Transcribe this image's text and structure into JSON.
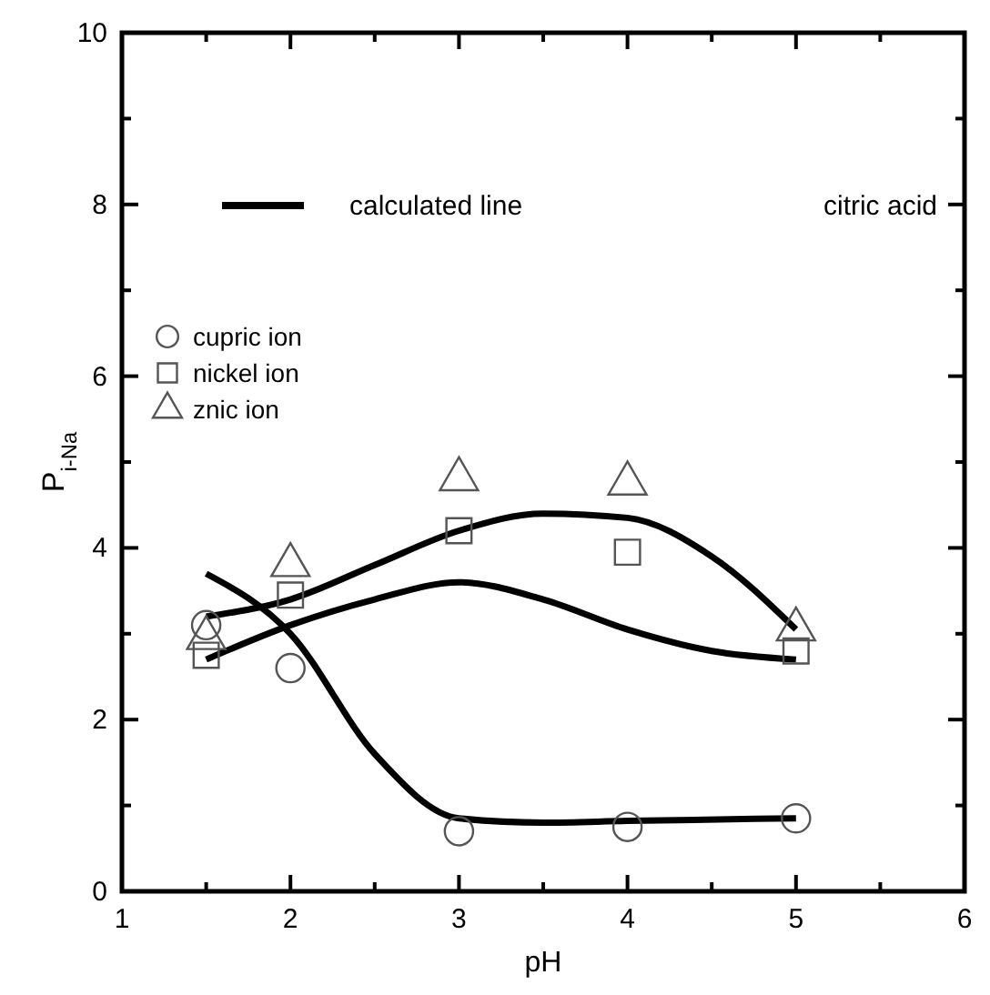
{
  "chart_data": {
    "type": "scatter",
    "xlabel": "pH",
    "ylabel": "P$_{i-Na}$",
    "xlim": [
      1,
      6
    ],
    "ylim": [
      0,
      10
    ],
    "xticks": [
      1,
      {
        "value": 1.5,
        "label": null
      },
      2,
      {
        "value": 2.5,
        "label": null
      },
      3,
      {
        "value": 3.5,
        "label": null
      },
      4,
      {
        "value": 4.5,
        "label": null
      },
      5,
      {
        "value": 5.5,
        "label": null
      },
      6
    ],
    "yticks": [
      0,
      {
        "value": 1,
        "label": null
      },
      2,
      {
        "value": 3,
        "label": null
      },
      4,
      {
        "value": 5,
        "label": null
      },
      6,
      {
        "value": 7,
        "label": null
      },
      8,
      {
        "value": 9,
        "label": null
      },
      10
    ],
    "grid": false,
    "legend": "top left",
    "annotations": [
      "citric acid"
    ],
    "series": [
      {
        "name": "calculated line",
        "type": "line",
        "color": "#000000",
        "line_style": "solid",
        "x": [
          1.5,
          2,
          2.5,
          3,
          3.5,
          4,
          5
        ],
        "values": [
          3.7,
          3.0,
          1.6,
          0.85,
          0.8,
          0.82,
          0.85
        ]
      },
      {
        "type": "line",
        "color": "#000000",
        "line_style": "solid",
        "x": [
          1.5,
          2,
          2.5,
          3,
          3.5,
          4,
          4.5,
          5
        ],
        "values": [
          2.7,
          3.1,
          3.4,
          3.6,
          3.4,
          3.05,
          2.8,
          2.7
        ]
      },
      {
        "type": "line",
        "color": "#000000",
        "line_style": "solid",
        "x": [
          1.5,
          2,
          2.5,
          3,
          3.5,
          4,
          4.5,
          5
        ],
        "values": [
          3.2,
          3.4,
          3.8,
          4.2,
          4.4,
          4.35,
          3.9,
          3.05
        ]
      },
      {
        "name": "cupric ion",
        "color": "#555555",
        "marker": "circle",
        "x": [
          1.5,
          2,
          3,
          4,
          5
        ],
        "values": [
          3.1,
          2.6,
          0.7,
          0.75,
          0.85
        ]
      },
      {
        "name": "nickel ion",
        "color": "#555555",
        "marker": "square",
        "x": [
          1.5,
          2,
          3,
          4,
          5
        ],
        "values": [
          2.75,
          3.45,
          4.2,
          3.95,
          2.8
        ]
      },
      {
        "name": "znic ion",
        "color": "#555555",
        "marker": "triangle",
        "x": [
          1.5,
          2,
          3,
          4,
          5
        ],
        "values": [
          2.95,
          3.8,
          4.8,
          4.75,
          3.05
        ]
      }
    ]
  }
}
